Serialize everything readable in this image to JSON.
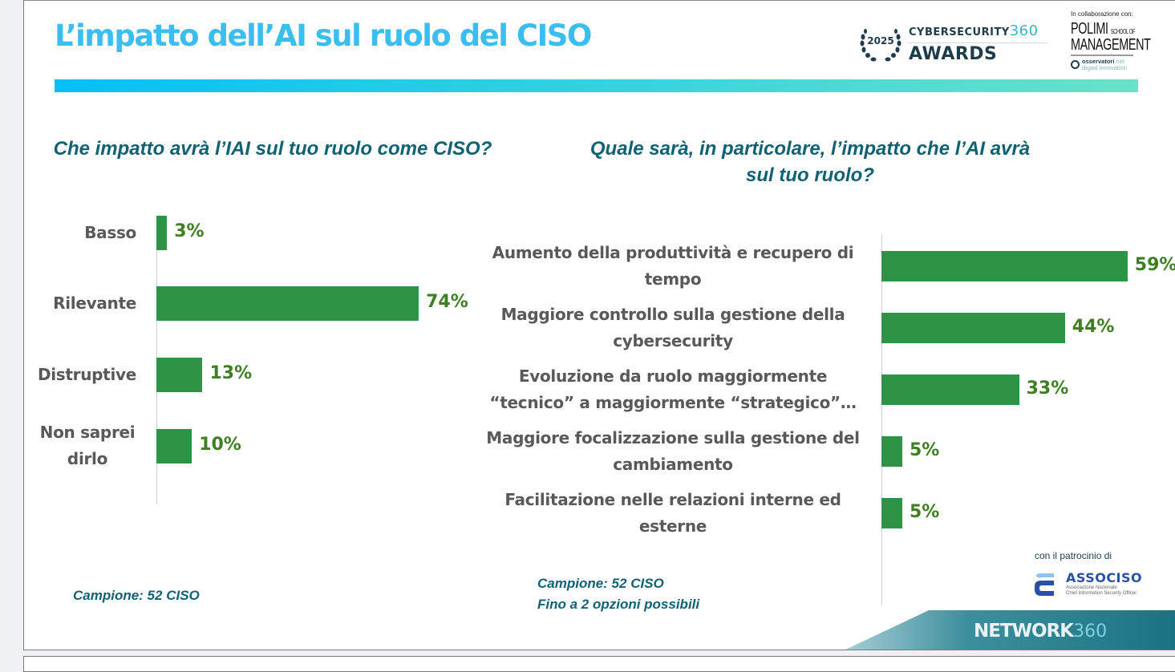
{
  "header": {
    "title": "L’impatto dell’AI sul ruolo del CISO",
    "awards_logo": {
      "year": "2025",
      "brand": "Cybersecurity",
      "suffix": "360",
      "subtitle": "AWARDS"
    },
    "collaboration": {
      "label": "In collaborazione con:",
      "polimi_main": "POLIMI",
      "polimi_small": "SCHOOL OF",
      "polimi_second": "MANAGEMENT",
      "osservatori_name": "osservatori",
      "osservatori_tld": ".net",
      "osservatori_sub": "digital innovation"
    }
  },
  "colors": {
    "title": "#3bbdf0",
    "question": "#0e6273",
    "bar": "#2e9345",
    "bar_label": "#3f7f23",
    "category": "#595959"
  },
  "chart_data": [
    {
      "type": "bar",
      "orientation": "horizontal",
      "title": "Che impatto avrà l’IAI sul tuo ruolo come CISO?",
      "categories": [
        "Basso",
        "Rilevante",
        "Distruptive",
        "Non saprei dirlo"
      ],
      "values": [
        3,
        74,
        13,
        10
      ],
      "value_labels": [
        "3%",
        "74%",
        "13%",
        "10%"
      ],
      "unit": "%",
      "xlim": [
        0,
        80
      ],
      "grid": false,
      "note": "Campione: 52 CISO"
    },
    {
      "type": "bar",
      "orientation": "horizontal",
      "title": "Quale sarà, in particolare, l’impatto che l’AI avrà sul tuo ruolo?",
      "categories": [
        "Aumento della produttività e recupero di tempo",
        "Maggiore controllo sulla gestione della cybersecurity",
        "Evoluzione da ruolo maggiormente “tecnico” a maggiormente “strategico”…",
        "Maggiore focalizzazione sulla gestione del cambiamento",
        "Facilitazione nelle relazioni interne ed esterne"
      ],
      "values": [
        59,
        44,
        33,
        5,
        5
      ],
      "value_labels": [
        "59%",
        "44%",
        "33%",
        "5%",
        "5%"
      ],
      "unit": "%",
      "xlim": [
        0,
        65
      ],
      "grid": false,
      "note_lines": [
        "Campione: 52 CISO",
        "Fino a 2 opzioni possibili"
      ]
    }
  ],
  "footer": {
    "patrocinio_label": "con il patrocinio di",
    "associso_name": "ASSOCISO",
    "associso_sub1": "Associazione Nazionale",
    "associso_sub2": "Chief Information Security Officer",
    "network_brand": "NETWORK",
    "network_suffix": "360"
  }
}
